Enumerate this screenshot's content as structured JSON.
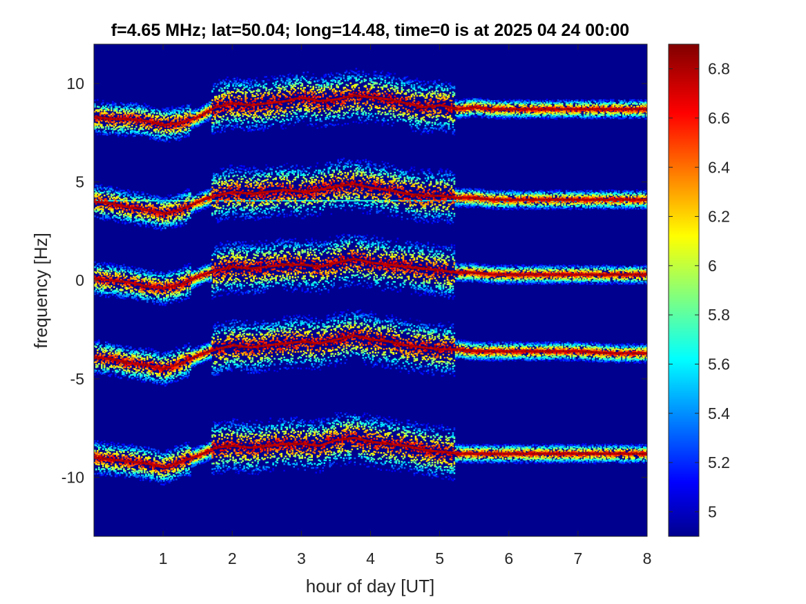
{
  "chart_data": {
    "type": "heatmap",
    "title": "f=4.65 MHz;  lat=50.04; long=14.48, time=0 is at 2025 04 24 00:00",
    "xlabel": "hour of day [UT]",
    "ylabel": "frequency [Hz]",
    "xlim": [
      0,
      8
    ],
    "ylim": [
      -13,
      12
    ],
    "xticks": [
      1,
      2,
      3,
      4,
      5,
      6,
      7,
      8
    ],
    "xtick_labels": [
      "1",
      "2",
      "3",
      "4",
      "5",
      "6",
      "7",
      "8"
    ],
    "yticks": [
      -10,
      -5,
      0,
      5,
      10
    ],
    "ytick_labels": [
      "-10",
      "-5",
      "0",
      "5",
      "10"
    ],
    "colorbar": {
      "clim": [
        4.9,
        6.9
      ],
      "ticks": [
        5,
        5.2,
        5.4,
        5.6,
        5.8,
        6,
        6.2,
        6.4,
        6.6,
        6.8
      ],
      "tick_labels": [
        "5",
        "5.2",
        "5.4",
        "5.6",
        "5.8",
        "6",
        "6.2",
        "6.4",
        "6.6",
        "6.8"
      ],
      "colormap": "jet"
    },
    "background_value": 4.92,
    "constant_line": {
      "y": 4.05,
      "value": 5.7
    },
    "trace_hours": [
      0,
      0.25,
      0.5,
      0.75,
      1.0,
      1.25,
      1.5,
      1.75,
      2.0,
      2.25,
      2.5,
      2.75,
      3.0,
      3.25,
      3.5,
      3.75,
      4.0,
      4.25,
      4.5,
      4.75,
      5.0,
      5.25,
      5.5,
      5.75,
      6.0,
      6.5,
      7.0,
      7.5,
      8.0
    ],
    "series": [
      {
        "values": [
          8.3,
          8.2,
          8.2,
          8.1,
          7.9,
          8.0,
          8.3,
          8.8,
          9.0,
          8.9,
          9.0,
          9.1,
          9.3,
          9.1,
          9.2,
          9.4,
          9.3,
          9.2,
          9.0,
          8.8,
          8.9,
          8.7,
          8.8,
          8.7,
          8.7,
          8.7,
          8.7,
          8.7,
          8.7
        ]
      },
      {
        "values": [
          4.0,
          3.9,
          3.7,
          3.6,
          3.4,
          3.6,
          4.0,
          4.3,
          4.5,
          4.4,
          4.5,
          4.6,
          4.5,
          4.6,
          4.8,
          4.9,
          4.7,
          4.6,
          4.4,
          4.3,
          4.3,
          4.2,
          4.2,
          4.1,
          4.1,
          4.1,
          4.1,
          4.1,
          4.1
        ]
      },
      {
        "values": [
          0.1,
          0.0,
          -0.1,
          -0.3,
          -0.4,
          -0.2,
          0.2,
          0.5,
          0.7,
          0.6,
          0.7,
          0.8,
          0.8,
          0.7,
          0.9,
          1.1,
          0.9,
          0.8,
          0.7,
          0.6,
          0.5,
          0.4,
          0.4,
          0.3,
          0.3,
          0.3,
          0.3,
          0.3,
          0.3
        ]
      },
      {
        "values": [
          -3.9,
          -4.0,
          -4.2,
          -4.3,
          -4.5,
          -4.2,
          -3.8,
          -3.5,
          -3.3,
          -3.4,
          -3.3,
          -3.2,
          -3.1,
          -3.2,
          -3.0,
          -2.8,
          -3.0,
          -3.1,
          -3.3,
          -3.4,
          -3.5,
          -3.5,
          -3.6,
          -3.6,
          -3.6,
          -3.6,
          -3.6,
          -3.7,
          -3.7
        ]
      },
      {
        "values": [
          -9.0,
          -9.1,
          -9.2,
          -9.3,
          -9.5,
          -9.2,
          -8.9,
          -8.5,
          -8.4,
          -8.5,
          -8.4,
          -8.3,
          -8.3,
          -8.4,
          -8.1,
          -8.0,
          -8.2,
          -8.3,
          -8.4,
          -8.6,
          -8.7,
          -8.8,
          -8.8,
          -8.8,
          -8.8,
          -8.8,
          -8.8,
          -8.8,
          -8.8
        ]
      }
    ]
  }
}
